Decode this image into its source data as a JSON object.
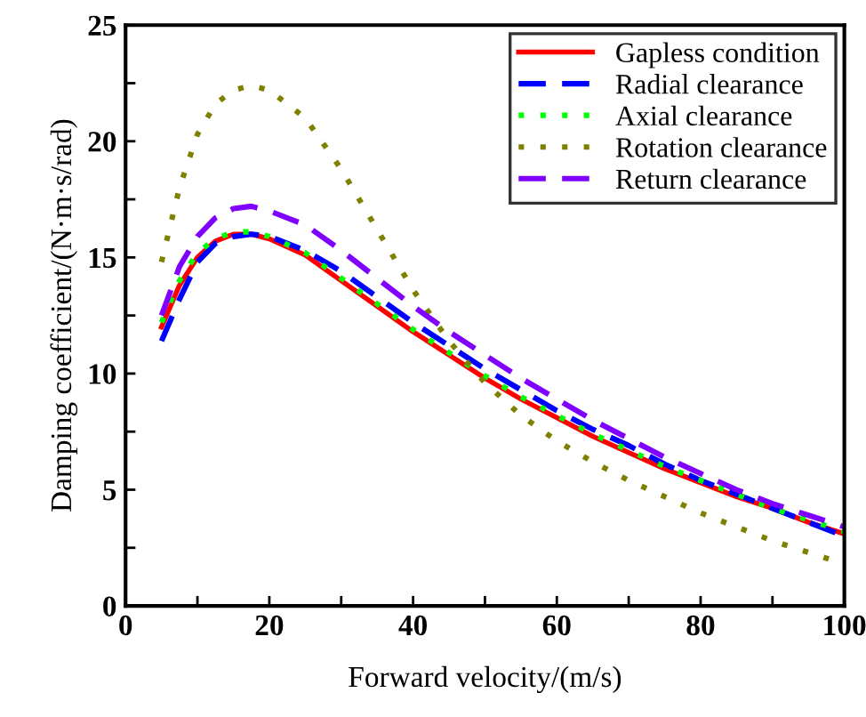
{
  "chart_data": {
    "type": "line",
    "xlabel": "Forward velocity/(m/s)",
    "ylabel": "Damping coefficient/(N·m·s/rad)",
    "x": [
      5,
      7.5,
      10,
      12.5,
      15,
      17.5,
      20,
      25,
      30,
      35,
      40,
      45,
      50,
      55,
      60,
      65,
      70,
      75,
      80,
      85,
      90,
      95,
      100
    ],
    "xlim": [
      0,
      100
    ],
    "ylim": [
      0,
      25
    ],
    "xticks": [
      0,
      {
        "value": 10,
        "label": null
      },
      20,
      {
        "value": 30,
        "label": null
      },
      40,
      {
        "value": 50,
        "label": null
      },
      60,
      {
        "value": 70,
        "label": null
      },
      80,
      {
        "value": 90,
        "label": null
      },
      100
    ],
    "yticks": [
      0,
      {
        "value": 2.5,
        "label": null
      },
      5,
      {
        "value": 7.5,
        "label": null
      },
      10,
      {
        "value": 12.5,
        "label": null
      },
      15,
      {
        "value": 17.5,
        "label": null
      },
      20,
      {
        "value": 22.5,
        "label": null
      },
      25
    ],
    "legend": "top right",
    "grid": false,
    "marker": "none",
    "series": [
      {
        "name": "Gapless condition",
        "color": "#ff0000",
        "line_style": "solid",
        "values": [
          12.0,
          13.8,
          15.0,
          15.7,
          16.0,
          16.0,
          15.8,
          15.1,
          14.0,
          12.9,
          11.8,
          10.8,
          9.8,
          8.9,
          8.1,
          7.3,
          6.6,
          5.9,
          5.3,
          4.7,
          4.2,
          3.6,
          3.1
        ]
      },
      {
        "name": "Radial clearance",
        "color": "#0000ff",
        "line_style": "dashed",
        "values": [
          11.4,
          13.2,
          14.8,
          15.6,
          15.9,
          16.0,
          15.9,
          15.3,
          14.4,
          13.3,
          12.2,
          11.2,
          10.2,
          9.3,
          8.4,
          7.6,
          6.9,
          6.1,
          5.4,
          4.8,
          4.2,
          3.6,
          3.0
        ]
      },
      {
        "name": "Axial clearance",
        "color": "#00ff00",
        "line_style": "dotted",
        "values": [
          12.2,
          14.0,
          15.2,
          15.8,
          16.1,
          16.1,
          15.9,
          15.2,
          14.1,
          13.0,
          11.9,
          10.9,
          9.9,
          9.0,
          8.2,
          7.4,
          6.7,
          6.0,
          5.4,
          4.8,
          4.2,
          3.7,
          3.2
        ]
      },
      {
        "name": "Rotation clearance",
        "color": "#808000",
        "line_style": "dotted",
        "values": [
          14.8,
          18.0,
          20.3,
          21.6,
          22.2,
          22.4,
          22.2,
          21.0,
          18.8,
          16.2,
          13.6,
          11.4,
          9.6,
          8.2,
          7.1,
          6.2,
          5.4,
          4.7,
          4.0,
          3.4,
          2.8,
          2.3,
          1.8
        ]
      },
      {
        "name": "Return clearance",
        "color": "#8000ff",
        "line_style": "dashed",
        "values": [
          12.5,
          14.6,
          15.9,
          16.7,
          17.1,
          17.2,
          17.0,
          16.4,
          15.3,
          14.1,
          12.9,
          11.8,
          10.8,
          9.8,
          8.9,
          8.0,
          7.2,
          6.4,
          5.7,
          5.0,
          4.4,
          3.9,
          3.4
        ]
      }
    ]
  }
}
